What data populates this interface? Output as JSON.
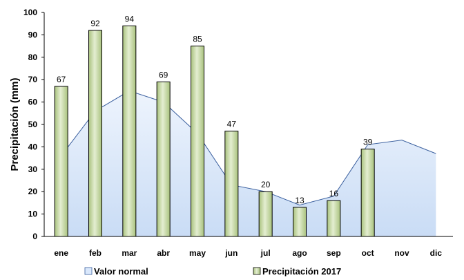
{
  "chart_data": {
    "type": "bar",
    "categories": [
      "ene",
      "feb",
      "mar",
      "abr",
      "may",
      "jun",
      "jul",
      "ago",
      "sep",
      "oct",
      "nov",
      "dic"
    ],
    "series": [
      {
        "name": "Valor normal",
        "kind": "area",
        "values": [
          36,
          56,
          65,
          60,
          46,
          23,
          20,
          14,
          18,
          41,
          43,
          37
        ],
        "fill": "#dae8fc",
        "stroke": "#3a5f9e"
      },
      {
        "name": "Precipitación 2017",
        "kind": "bar",
        "values": [
          67,
          92,
          94,
          69,
          85,
          47,
          20,
          13,
          16,
          39,
          null,
          null
        ],
        "data_labels": [
          "67",
          "92",
          "94",
          "69",
          "85",
          "47",
          "20",
          "13",
          "16",
          "39"
        ],
        "fill": "#c6d9a6",
        "stroke": "#000000"
      }
    ],
    "title": "",
    "xlabel": "",
    "ylabel": "Precipitación (mm)",
    "ylim": [
      0,
      100
    ],
    "yticks": [
      "0",
      "10",
      "20",
      "30",
      "40",
      "50",
      "60",
      "70",
      "80",
      "90",
      "100"
    ],
    "grid": false,
    "legend": "bottom"
  }
}
